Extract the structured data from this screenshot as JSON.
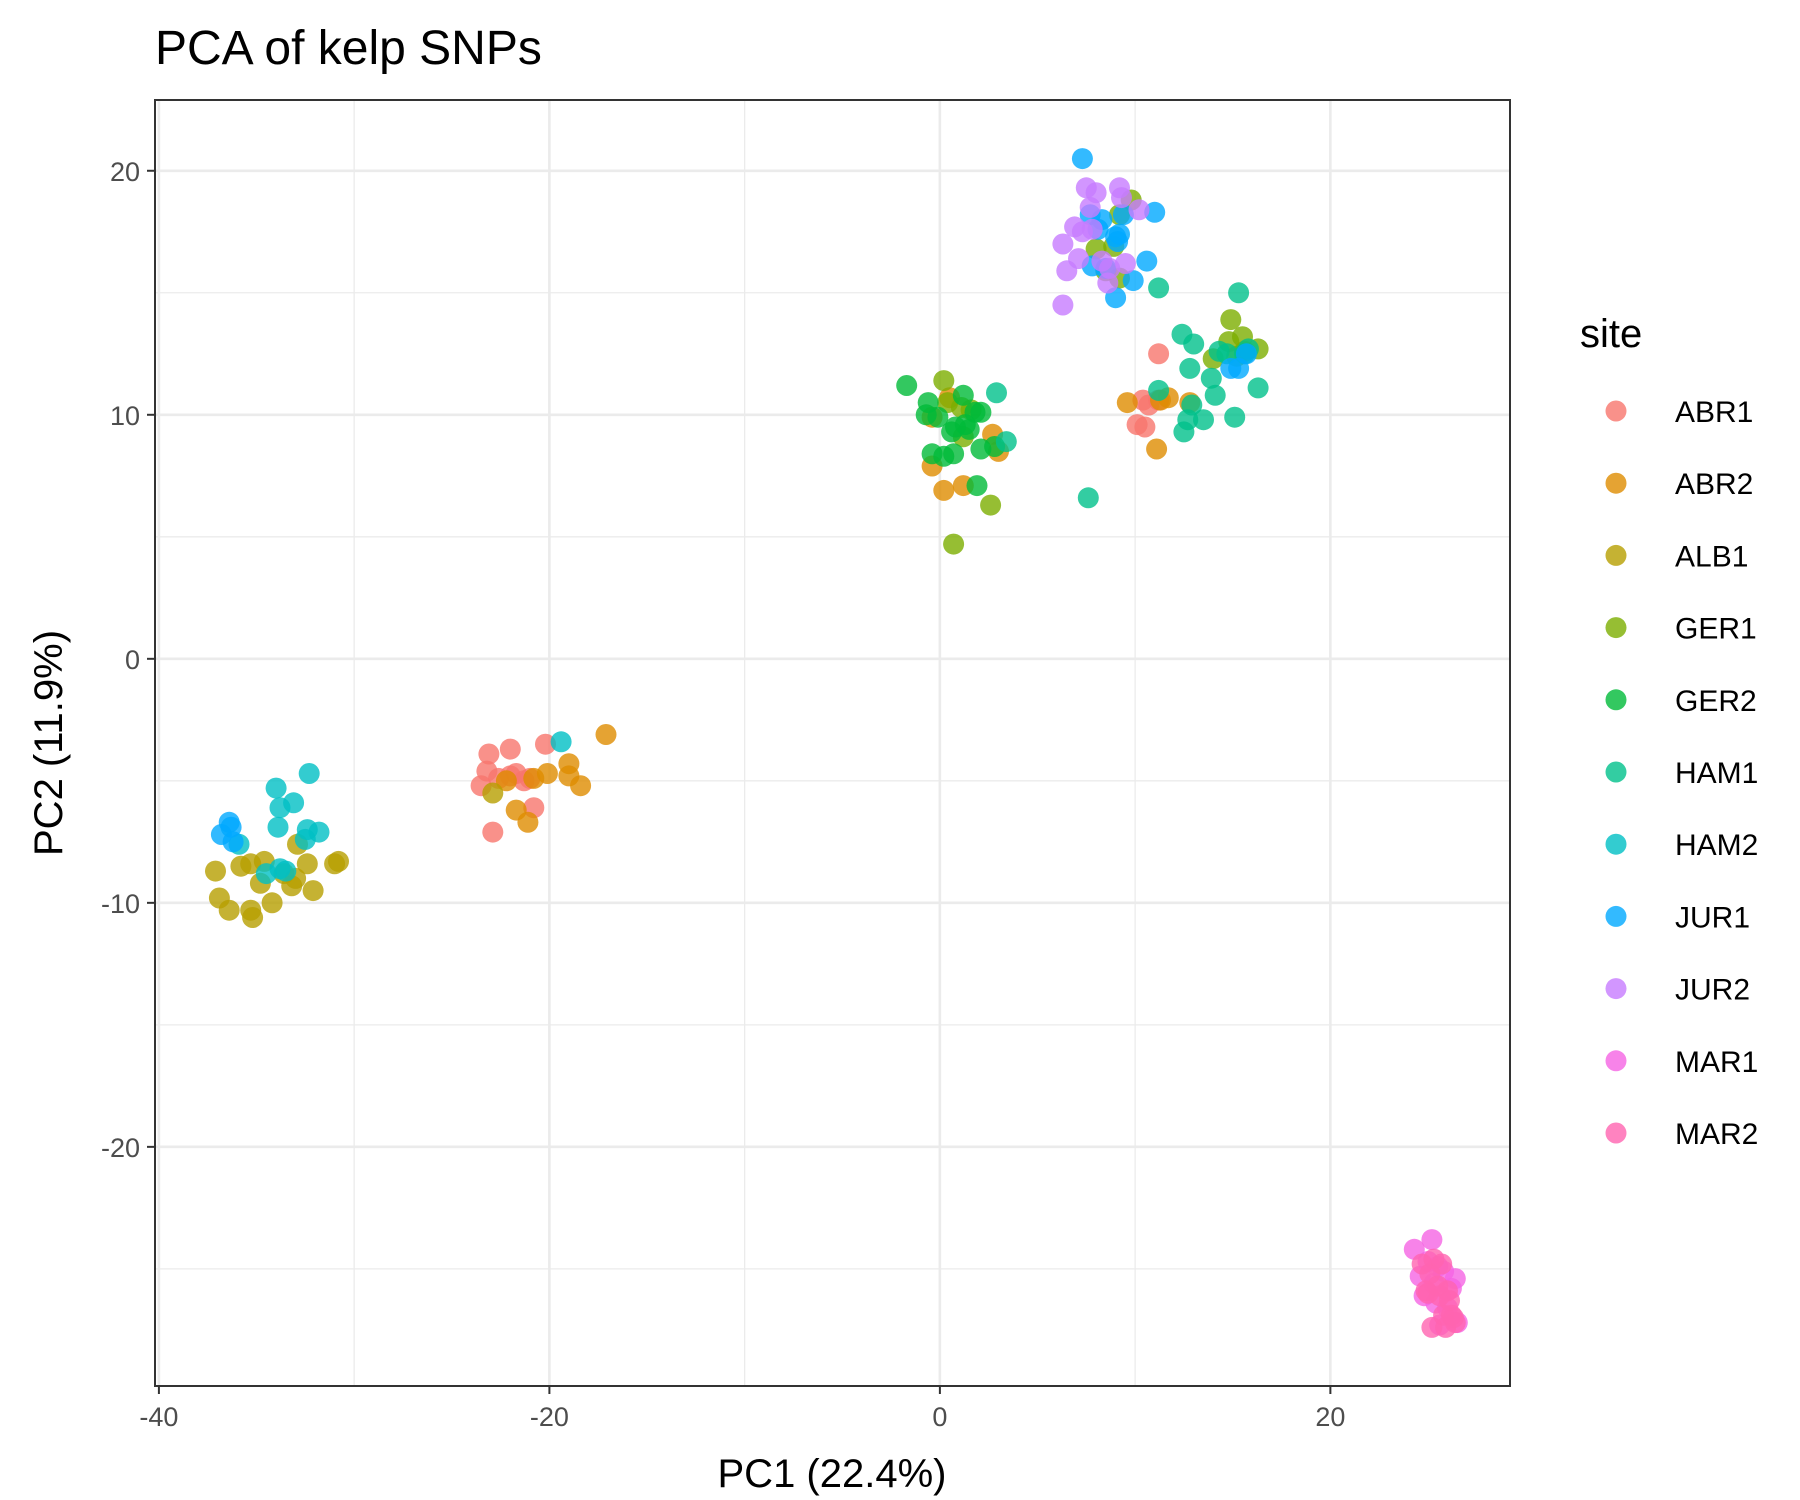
{
  "chart_data": {
    "type": "scatter",
    "title": "PCA of kelp SNPs",
    "xlabel": "PC1 (22.4%)",
    "ylabel": "PC2 (11.9%)",
    "xlim": [
      -40.2,
      29.2
    ],
    "ylim": [
      -29.8,
      22.9
    ],
    "x_major_ticks": [
      -40,
      -20,
      0,
      20
    ],
    "x_tick_labels": [
      "-40",
      "-20",
      "0",
      "20"
    ],
    "y_major_ticks": [
      -20,
      -10,
      0,
      10,
      20
    ],
    "y_tick_labels": [
      "-20",
      "-10",
      "0",
      "10",
      "20"
    ],
    "x_minor_ticks": [
      -30,
      -10,
      10
    ],
    "y_minor_ticks": [
      -25,
      -15,
      -5,
      5,
      15
    ],
    "grid": true,
    "legend": {
      "title": "site",
      "position": "right"
    },
    "series": [
      {
        "name": "ABR1",
        "color": "#F8766D",
        "points": [
          [
            -23.5,
            -5.2
          ],
          [
            -23.1,
            -3.9
          ],
          [
            -23.2,
            -4.6
          ],
          [
            -22.6,
            -4.9
          ],
          [
            -22.0,
            -3.7
          ],
          [
            -21.7,
            -4.7
          ],
          [
            -21.3,
            -5.0
          ],
          [
            -21.0,
            -4.9
          ],
          [
            -20.2,
            -3.5
          ],
          [
            -22.9,
            -7.1
          ],
          [
            -20.8,
            -6.1
          ],
          [
            -22.0,
            -4.8
          ],
          [
            10.4,
            10.6
          ],
          [
            10.7,
            10.4
          ],
          [
            11.2,
            10.6
          ],
          [
            10.1,
            9.6
          ],
          [
            10.5,
            9.5
          ],
          [
            11.2,
            12.5
          ]
        ]
      },
      {
        "name": "ABR2",
        "color": "#DE8C00",
        "points": [
          [
            -22.2,
            -5.0
          ],
          [
            -21.7,
            -6.2
          ],
          [
            -21.1,
            -6.7
          ],
          [
            -20.8,
            -4.9
          ],
          [
            -20.1,
            -4.7
          ],
          [
            -19.0,
            -4.3
          ],
          [
            -19.0,
            -4.8
          ],
          [
            -18.4,
            -5.2
          ],
          [
            -17.1,
            -3.1
          ],
          [
            -0.4,
            7.9
          ],
          [
            0.2,
            6.9
          ],
          [
            1.2,
            7.1
          ],
          [
            2.7,
            9.2
          ],
          [
            3.0,
            8.5
          ],
          [
            -0.4,
            9.9
          ],
          [
            0.5,
            10.7
          ],
          [
            9.6,
            10.5
          ],
          [
            11.3,
            10.6
          ],
          [
            11.7,
            10.7
          ],
          [
            12.8,
            10.5
          ],
          [
            11.1,
            8.6
          ]
        ]
      },
      {
        "name": "ALB1",
        "color": "#B79F00",
        "points": [
          [
            -37.1,
            -8.7
          ],
          [
            -36.9,
            -9.8
          ],
          [
            -36.4,
            -10.3
          ],
          [
            -35.8,
            -8.5
          ],
          [
            -35.3,
            -10.3
          ],
          [
            -35.2,
            -10.6
          ],
          [
            -34.8,
            -9.2
          ],
          [
            -34.6,
            -8.3
          ],
          [
            -34.2,
            -10.0
          ],
          [
            -33.2,
            -9.3
          ],
          [
            -33.0,
            -9.0
          ],
          [
            -32.9,
            -7.6
          ],
          [
            -32.4,
            -8.4
          ],
          [
            -32.1,
            -9.5
          ],
          [
            -31.0,
            -8.4
          ],
          [
            -30.8,
            -8.3
          ],
          [
            -22.9,
            -5.5
          ],
          [
            -35.3,
            -8.4
          ],
          [
            -33.6,
            -8.8
          ]
        ]
      },
      {
        "name": "GER1",
        "color": "#7CAE00",
        "points": [
          [
            0.2,
            11.4
          ],
          [
            0.4,
            10.5
          ],
          [
            0.7,
            4.7
          ],
          [
            1.1,
            10.3
          ],
          [
            1.2,
            9.1
          ],
          [
            2.6,
            6.3
          ],
          [
            1.6,
            10.2
          ],
          [
            8.5,
            15.9
          ],
          [
            8.9,
            16.9
          ],
          [
            9.2,
            18.2
          ],
          [
            9.8,
            18.8
          ],
          [
            8.0,
            16.8
          ],
          [
            9.2,
            15.6
          ],
          [
            14.9,
            13.9
          ],
          [
            15.2,
            12.4
          ],
          [
            15.6,
            12.6
          ],
          [
            16.3,
            12.7
          ],
          [
            15.5,
            13.2
          ],
          [
            14.0,
            12.3
          ],
          [
            14.8,
            13.0
          ]
        ]
      },
      {
        "name": "GER2",
        "color": "#00BA38",
        "points": [
          [
            -1.7,
            11.2
          ],
          [
            -0.6,
            10.5
          ],
          [
            -0.7,
            10.0
          ],
          [
            -0.4,
            8.4
          ],
          [
            -0.1,
            9.9
          ],
          [
            0.2,
            8.3
          ],
          [
            0.6,
            9.3
          ],
          [
            0.7,
            8.4
          ],
          [
            0.8,
            9.5
          ],
          [
            1.3,
            9.6
          ],
          [
            1.5,
            9.4
          ],
          [
            1.8,
            10.1
          ],
          [
            1.9,
            7.1
          ],
          [
            2.1,
            8.6
          ],
          [
            2.1,
            10.1
          ],
          [
            2.8,
            8.7
          ],
          [
            1.2,
            10.8
          ]
        ]
      },
      {
        "name": "HAM1",
        "color": "#00C08B",
        "points": [
          [
            2.9,
            10.9
          ],
          [
            3.4,
            8.9
          ],
          [
            7.6,
            6.6
          ],
          [
            11.2,
            11.0
          ],
          [
            11.2,
            15.2
          ],
          [
            12.4,
            13.3
          ],
          [
            12.5,
            9.3
          ],
          [
            12.7,
            9.8
          ],
          [
            12.8,
            11.9
          ],
          [
            12.9,
            10.4
          ],
          [
            13.0,
            12.9
          ],
          [
            13.5,
            9.8
          ],
          [
            14.1,
            10.8
          ],
          [
            14.3,
            12.6
          ],
          [
            14.7,
            12.5
          ],
          [
            15.1,
            9.9
          ],
          [
            15.3,
            15.0
          ],
          [
            15.6,
            12.5
          ],
          [
            15.8,
            12.7
          ],
          [
            16.3,
            11.1
          ],
          [
            13.9,
            11.5
          ]
        ]
      },
      {
        "name": "HAM2",
        "color": "#00BFC4",
        "points": [
          [
            -34.0,
            -5.3
          ],
          [
            -33.9,
            -6.9
          ],
          [
            -33.8,
            -6.1
          ],
          [
            -33.1,
            -5.9
          ],
          [
            -32.5,
            -7.4
          ],
          [
            -32.4,
            -7.0
          ],
          [
            -32.3,
            -4.7
          ],
          [
            -31.8,
            -7.1
          ],
          [
            -33.5,
            -8.7
          ],
          [
            -34.5,
            -8.8
          ],
          [
            -35.9,
            -7.6
          ],
          [
            -19.4,
            -3.4
          ],
          [
            -33.8,
            -8.6
          ]
        ]
      },
      {
        "name": "JUR1",
        "color": "#00A9FF",
        "points": [
          [
            -36.4,
            -6.7
          ],
          [
            -36.3,
            -6.9
          ],
          [
            -36.2,
            -7.5
          ],
          [
            -36.8,
            -7.2
          ],
          [
            7.3,
            20.5
          ],
          [
            7.7,
            18.2
          ],
          [
            8.1,
            17.6
          ],
          [
            8.3,
            18.0
          ],
          [
            8.5,
            16.0
          ],
          [
            9.0,
            17.3
          ],
          [
            9.2,
            17.4
          ],
          [
            9.4,
            18.2
          ],
          [
            9.0,
            14.8
          ],
          [
            9.9,
            15.5
          ],
          [
            10.6,
            16.3
          ],
          [
            11.0,
            18.3
          ],
          [
            14.9,
            11.9
          ],
          [
            15.3,
            11.9
          ],
          [
            15.7,
            12.5
          ],
          [
            7.8,
            16.1
          ],
          [
            9.1,
            17.1
          ]
        ]
      },
      {
        "name": "JUR2",
        "color": "#C77CFF",
        "points": [
          [
            6.3,
            14.5
          ],
          [
            6.3,
            17.0
          ],
          [
            6.5,
            15.9
          ],
          [
            6.9,
            17.7
          ],
          [
            7.1,
            16.4
          ],
          [
            7.3,
            17.5
          ],
          [
            7.5,
            19.3
          ],
          [
            7.7,
            18.5
          ],
          [
            7.8,
            17.6
          ],
          [
            8.3,
            16.3
          ],
          [
            8.6,
            15.4
          ],
          [
            8.7,
            16.0
          ],
          [
            9.2,
            19.3
          ],
          [
            9.3,
            18.9
          ],
          [
            9.5,
            16.2
          ],
          [
            10.2,
            18.4
          ],
          [
            8.0,
            19.1
          ]
        ]
      },
      {
        "name": "MAR1",
        "color": "#F564E3",
        "points": [
          [
            24.3,
            -24.2
          ],
          [
            24.6,
            -25.3
          ],
          [
            24.8,
            -26.1
          ],
          [
            25.0,
            -24.7
          ],
          [
            25.2,
            -23.8
          ],
          [
            25.3,
            -25.6
          ],
          [
            25.4,
            -26.4
          ],
          [
            25.5,
            -24.9
          ],
          [
            25.6,
            -27.3
          ],
          [
            25.8,
            -25.1
          ],
          [
            26.0,
            -26.6
          ],
          [
            26.2,
            -25.8
          ],
          [
            26.4,
            -25.4
          ],
          [
            26.5,
            -27.2
          ]
        ]
      },
      {
        "name": "MAR2",
        "color": "#FF64B0",
        "points": [
          [
            24.7,
            -24.8
          ],
          [
            24.9,
            -25.9
          ],
          [
            25.0,
            -26.0
          ],
          [
            25.1,
            -25.2
          ],
          [
            25.2,
            -27.4
          ],
          [
            25.3,
            -24.6
          ],
          [
            25.5,
            -25.7
          ],
          [
            25.7,
            -24.8
          ],
          [
            25.8,
            -26.9
          ],
          [
            25.9,
            -27.4
          ],
          [
            26.0,
            -25.9
          ],
          [
            26.1,
            -26.3
          ],
          [
            26.2,
            -26.9
          ],
          [
            26.3,
            -27.0
          ],
          [
            26.4,
            -27.2
          ],
          [
            25.6,
            -26.1
          ]
        ]
      }
    ]
  }
}
